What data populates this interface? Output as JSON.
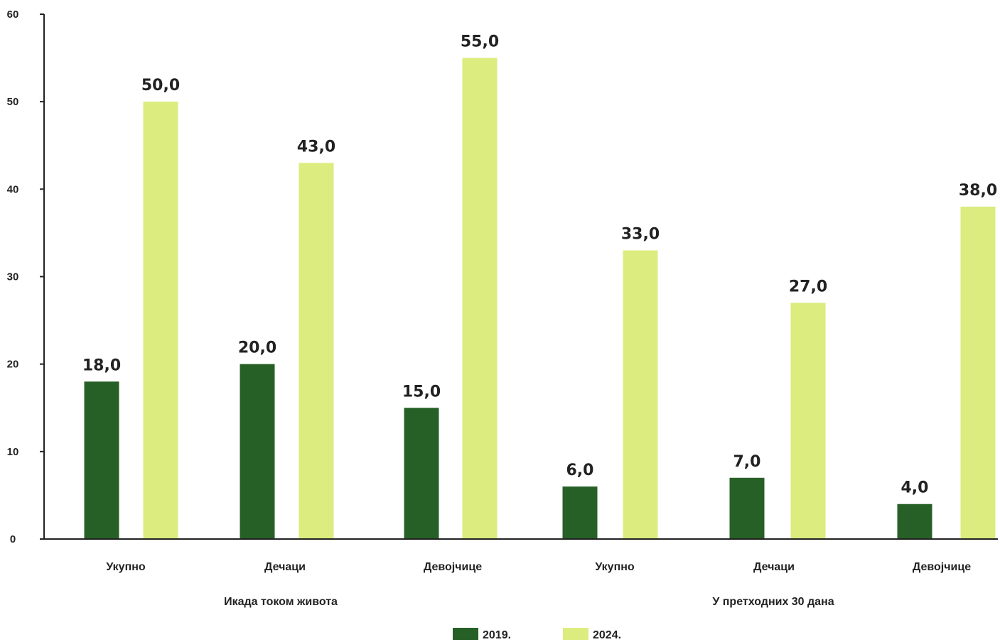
{
  "chart_data": {
    "type": "bar",
    "categories": [
      "Укупно",
      "Дечаци",
      "Девојчице",
      "Укупно",
      "Дечаци",
      "Девојчице"
    ],
    "groups": [
      {
        "label": "Икада током живота",
        "categories": [
          0,
          1,
          2
        ]
      },
      {
        "label": "У претходних 30 дана",
        "categories": [
          3,
          4,
          5
        ]
      }
    ],
    "series": [
      {
        "name": "2019.",
        "color": "#276027",
        "values": [
          18.0,
          20.0,
          15.0,
          6.0,
          7.0,
          4.0
        ],
        "value_labels": [
          "18,0",
          "20,0",
          "15,0",
          "6,0",
          "7,0",
          "4,0"
        ]
      },
      {
        "name": "2024.",
        "color": "#dcec7e",
        "values": [
          50.0,
          43.0,
          55.0,
          33.0,
          27.0,
          38.0
        ],
        "value_labels": [
          "50,0",
          "43,0",
          "55,0",
          "33,0",
          "27,0",
          "38,0"
        ]
      }
    ],
    "y_ticks": [
      "0",
      "10",
      "20",
      "30",
      "40",
      "50",
      "60"
    ],
    "ylim": [
      0,
      60
    ],
    "title": "",
    "xlabel": "",
    "ylabel": "",
    "grid": false,
    "legend_position": "bottom-center"
  }
}
